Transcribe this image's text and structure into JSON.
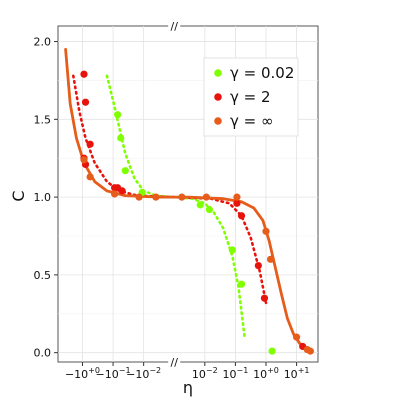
{
  "chart_data": {
    "type": "scatter",
    "xlabel": "η",
    "ylabel": "C",
    "ylim": [
      0,
      2.0
    ],
    "y_ticks": [
      "0.0",
      "0.5",
      "1.0",
      "1.5",
      "2.0"
    ],
    "x_ticks": [
      {
        "base": "−10",
        "exp": "+0",
        "v": -3
      },
      {
        "base": "−10",
        "exp": "−1",
        "v": -2
      },
      {
        "base": "−10",
        "exp": "−2",
        "v": -1
      },
      {
        "base": "10",
        "exp": "−2",
        "v": 1
      },
      {
        "base": "10",
        "exp": "−1",
        "v": 2
      },
      {
        "base": "10",
        "exp": "+0",
        "v": 3
      },
      {
        "base": "10",
        "exp": "+1",
        "v": 4
      }
    ],
    "grid": true,
    "legend_position": "top-right",
    "axis_break": "//",
    "series": [
      {
        "name": "γ = 0.02",
        "color": "#7fff00",
        "points": [
          [
            -1.85,
            1.53
          ],
          [
            -1.75,
            1.38
          ],
          [
            -1.6,
            1.17
          ],
          [
            -1.05,
            1.03
          ],
          [
            0.85,
            0.95
          ],
          [
            1.15,
            0.92
          ],
          [
            1.9,
            0.66
          ],
          [
            2.2,
            0.44
          ],
          [
            3.2,
            0.01
          ]
        ],
        "fit": [
          [
            -2.2,
            1.78
          ],
          [
            -2.0,
            1.62
          ],
          [
            -1.8,
            1.45
          ],
          [
            -1.6,
            1.28
          ],
          [
            -1.3,
            1.12
          ],
          [
            -1.0,
            1.04
          ],
          [
            -0.6,
            1.01
          ],
          [
            0.6,
            0.99
          ],
          [
            1.0,
            0.96
          ],
          [
            1.3,
            0.9
          ],
          [
            1.6,
            0.8
          ],
          [
            1.9,
            0.62
          ],
          [
            2.1,
            0.42
          ],
          [
            2.3,
            0.1
          ]
        ]
      },
      {
        "name": "γ = 2",
        "color": "#e8130c",
        "points": [
          [
            -2.95,
            1.79
          ],
          [
            -2.9,
            1.61
          ],
          [
            -2.75,
            1.34
          ],
          [
            -2.95,
            1.25
          ],
          [
            -2.9,
            1.21
          ],
          [
            -1.95,
            1.06
          ],
          [
            -1.85,
            1.06
          ],
          [
            -1.7,
            1.04
          ],
          [
            2.05,
            0.96
          ],
          [
            2.2,
            0.88
          ],
          [
            2.75,
            0.56
          ],
          [
            2.95,
            0.35
          ],
          [
            4.2,
            0.04
          ]
        ],
        "fit": [
          [
            -3.3,
            1.78
          ],
          [
            -3.1,
            1.55
          ],
          [
            -2.9,
            1.38
          ],
          [
            -2.6,
            1.22
          ],
          [
            -2.2,
            1.1
          ],
          [
            -1.8,
            1.04
          ],
          [
            -1.2,
            1.01
          ],
          [
            1.2,
            0.99
          ],
          [
            1.8,
            0.96
          ],
          [
            2.2,
            0.88
          ],
          [
            2.5,
            0.74
          ],
          [
            2.8,
            0.52
          ],
          [
            3.0,
            0.32
          ]
        ]
      },
      {
        "name": "γ = ∞",
        "color": "#e65c1a",
        "points": [
          [
            -2.95,
            1.24
          ],
          [
            -2.75,
            1.13
          ],
          [
            -1.95,
            1.02
          ],
          [
            -1.15,
            1.0
          ],
          [
            -0.6,
            1.0
          ],
          [
            0.25,
            1.0
          ],
          [
            1.05,
            1.0
          ],
          [
            2.05,
            1.0
          ],
          [
            3.0,
            0.78
          ],
          [
            3.15,
            0.6
          ],
          [
            4.0,
            0.1
          ],
          [
            4.35,
            0.02
          ],
          [
            4.45,
            0.01
          ]
        ],
        "fit": [
          [
            -3.55,
            1.95
          ],
          [
            -3.4,
            1.6
          ],
          [
            -3.2,
            1.38
          ],
          [
            -2.95,
            1.22
          ],
          [
            -2.6,
            1.1
          ],
          [
            -2.2,
            1.04
          ],
          [
            -1.6,
            1.01
          ],
          [
            -0.5,
            1.0
          ],
          [
            0.5,
            1.0
          ],
          [
            1.6,
            0.99
          ],
          [
            2.2,
            0.97
          ],
          [
            2.6,
            0.93
          ],
          [
            2.9,
            0.85
          ],
          [
            3.1,
            0.72
          ],
          [
            3.3,
            0.55
          ],
          [
            3.5,
            0.38
          ],
          [
            3.7,
            0.22
          ],
          [
            3.9,
            0.12
          ],
          [
            4.1,
            0.06
          ],
          [
            4.4,
            0.02
          ]
        ]
      }
    ]
  }
}
